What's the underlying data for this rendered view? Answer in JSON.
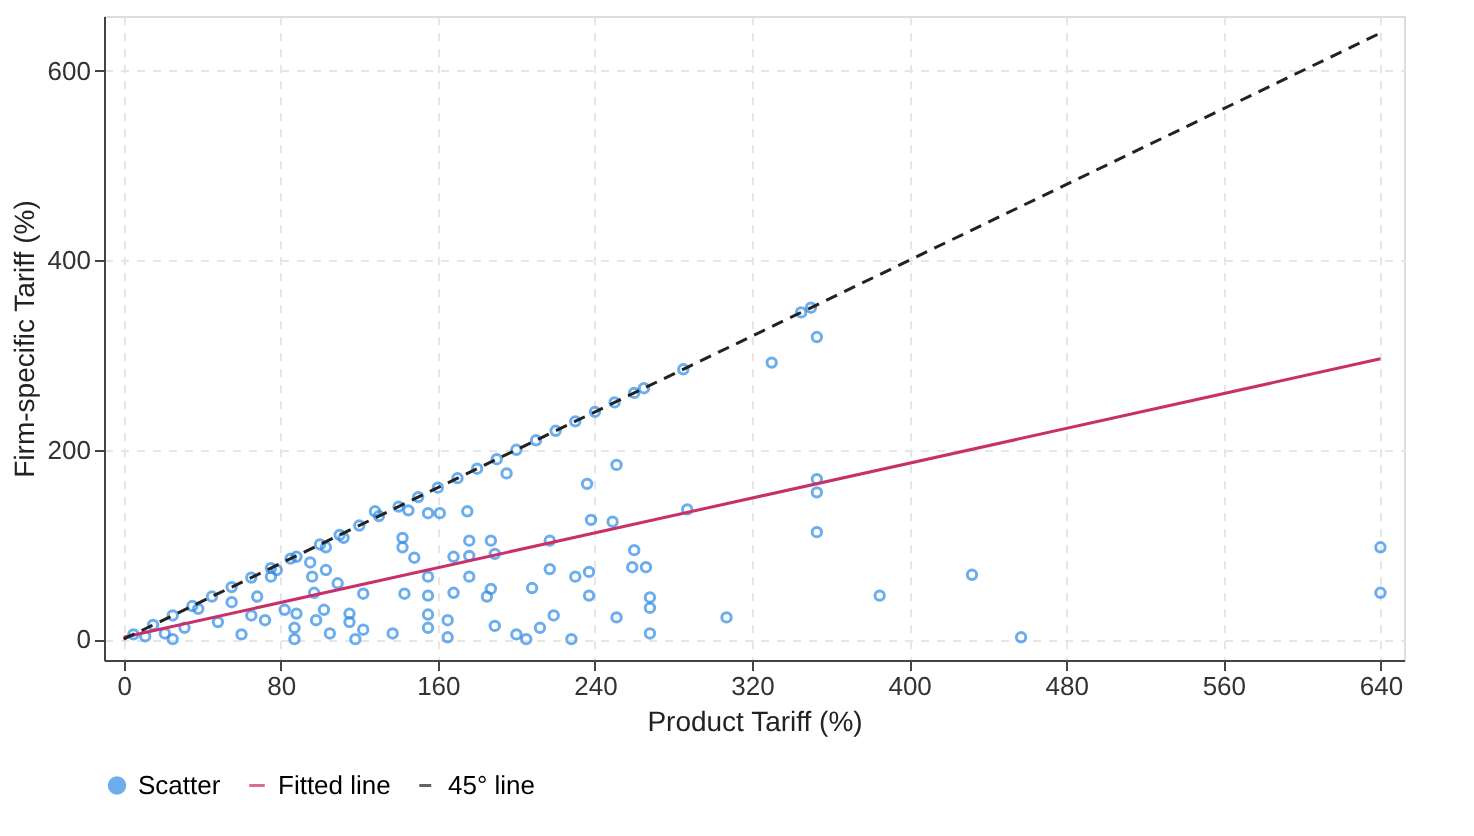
{
  "chart_data": {
    "type": "scatter",
    "xlabel": "Product Tariff (%)",
    "ylabel": "Firm-specific Tariff (%)",
    "xlim": [
      -10,
      652
    ],
    "ylim": [
      -22,
      658
    ],
    "xticks": [
      0,
      80,
      160,
      240,
      320,
      400,
      480,
      560,
      640
    ],
    "yticks": [
      0,
      200,
      400,
      600
    ],
    "grid": true,
    "legend": "bottom",
    "series": [
      {
        "name": "Scatter",
        "marker": "circle",
        "color": "#2f8be6",
        "x": [
          5,
          15,
          25,
          35,
          45,
          55,
          65,
          75,
          85,
          100,
          110,
          120,
          130,
          140,
          150,
          160,
          170,
          180,
          190,
          200,
          210,
          220,
          230,
          240,
          250,
          260,
          265,
          285,
          345,
          350,
          25,
          60,
          72,
          11,
          21,
          31,
          38,
          48,
          55,
          65,
          68,
          75,
          78,
          82,
          87,
          87,
          88,
          88,
          95,
          96,
          97,
          98,
          102,
          103,
          103,
          105,
          109,
          112,
          115,
          115,
          118,
          122,
          122,
          128,
          137,
          142,
          142,
          143,
          145,
          148,
          155,
          155,
          155,
          155,
          155,
          161,
          165,
          165,
          168,
          168,
          175,
          176,
          176,
          176,
          185,
          187,
          187,
          189,
          189,
          195,
          200,
          205,
          208,
          212,
          217,
          217,
          219,
          228,
          230,
          236,
          237,
          237,
          238,
          249,
          251,
          251,
          259,
          260,
          266,
          268,
          268,
          268,
          287,
          307,
          330,
          353,
          353,
          353,
          353,
          385,
          432,
          457,
          640,
          640
        ],
        "values": [
          5,
          15,
          25,
          35,
          45,
          55,
          65,
          75,
          85,
          100,
          110,
          120,
          130,
          140,
          150,
          160,
          170,
          180,
          190,
          200,
          210,
          220,
          230,
          240,
          250,
          260,
          265,
          285,
          345,
          350,
          0,
          5,
          20,
          3,
          6,
          12,
          32,
          18,
          39,
          25,
          45,
          66,
          73,
          31,
          12,
          0,
          27,
          87,
          81,
          66,
          49,
          20,
          31,
          73,
          97,
          6,
          59,
          107,
          18,
          27,
          0,
          10,
          48,
          135,
          6,
          107,
          97,
          48,
          136,
          86,
          133,
          66,
          46,
          26,
          12,
          133,
          20,
          2,
          87,
          49,
          135,
          104,
          88,
          66,
          45,
          104,
          53,
          90,
          14,
          175,
          5,
          0,
          54,
          12,
          104,
          74,
          25,
          0,
          66,
          164,
          71,
          46,
          126,
          124,
          184,
          23,
          76,
          94,
          76,
          44,
          33,
          6,
          137,
          23,
          292,
          319,
          169,
          155,
          113,
          46,
          68,
          2,
          97,
          49
        ]
      },
      {
        "name": "Fitted line",
        "type": "line",
        "color": "#c8306a",
        "line_style": "solid",
        "x": [
          0,
          640
        ],
        "values": [
          2,
          296
        ]
      },
      {
        "name": "45° line",
        "type": "line",
        "color": "#222222",
        "line_style": "dashed",
        "x": [
          0,
          640
        ],
        "values": [
          0,
          640
        ]
      }
    ]
  }
}
